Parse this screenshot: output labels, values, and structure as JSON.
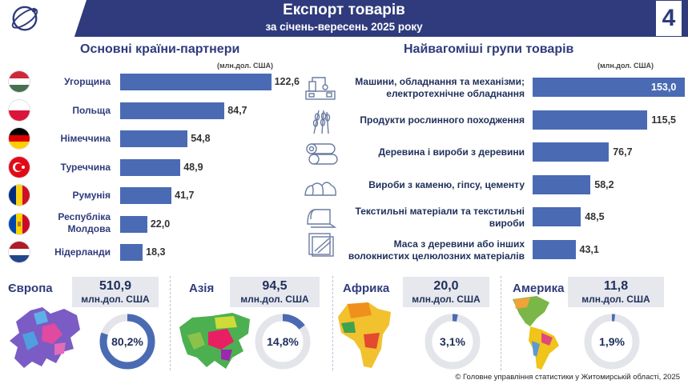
{
  "header": {
    "title": "Експорт товарів",
    "subtitle": "за січень-вересень 2025 року",
    "page_number": "4"
  },
  "partners": {
    "title": "Основні країни-партнери",
    "unit": "(млн.дол. США)"
  },
  "groups": {
    "title": "Найвагоміші групи товарів",
    "unit": "(млн.дол. США)"
  },
  "chart_data": [
    {
      "type": "bar",
      "orientation": "horizontal",
      "title": "Основні країни-партнери",
      "unit": "(млн.дол. США)",
      "categories": [
        "Угорщина",
        "Польща",
        "Німеччина",
        "Туреччина",
        "Румунія",
        "Республіка Молдова",
        "Нідерланди"
      ],
      "values": [
        122.6,
        84.7,
        54.8,
        48.9,
        41.7,
        22.0,
        18.3
      ],
      "labels": [
        "122,6",
        "84,7",
        "54,8",
        "48,9",
        "41,7",
        "22,0",
        "18,3"
      ],
      "bar_color": "#4a6bb4"
    },
    {
      "type": "bar",
      "orientation": "horizontal",
      "title": "Найвагоміші групи товарів",
      "unit": "(млн.дол. США)",
      "categories": [
        "Машини, обладнання та механізми; електротехнічне обладнання",
        "Продукти рослинного походження",
        "Деревина і вироби з деревини",
        "Вироби з каменю, гіпсу, цементу",
        "Текстильні матеріали та текстильні вироби",
        "Маса з деревини або інших волокнистих целюлозних матеріалів"
      ],
      "values": [
        153.0,
        115.5,
        76.7,
        58.2,
        48.5,
        43.1
      ],
      "labels": [
        "153,0",
        "115,5",
        "76,7",
        "58,2",
        "48,5",
        "43,1"
      ],
      "bar_color": "#4a6bb4"
    },
    {
      "type": "pie",
      "variant": "donut",
      "categories": [
        "Європа",
        "Азія",
        "Африка",
        "Америка"
      ],
      "values": [
        80.2,
        14.8,
        3.1,
        1.9
      ],
      "labels": [
        "80,2%",
        "14,8%",
        "3,1%",
        "1,9%"
      ],
      "amounts": [
        "510,9",
        "94,5",
        "20,0",
        "11,8"
      ],
      "amount_unit": "млн.дол. США",
      "ring_color": "#4a6bb4",
      "track_color": "#e3e5ea"
    }
  ],
  "partner_labels": [
    {
      "line1": "Угорщина",
      "line2": ""
    },
    {
      "line1": "Польща",
      "line2": ""
    },
    {
      "line1": "Німеччина",
      "line2": ""
    },
    {
      "line1": "Туреччина",
      "line2": ""
    },
    {
      "line1": "Румунія",
      "line2": ""
    },
    {
      "line1": "Республіка",
      "line2": "Молдова"
    },
    {
      "line1": "Нідерланди",
      "line2": ""
    }
  ],
  "group_labels": [
    {
      "line1": "Машини, обладнання та механізми;",
      "line2": "електротехнічне обладнання"
    },
    {
      "line1": "Продукти рослинного походження",
      "line2": ""
    },
    {
      "line1": "Деревина і вироби з деревини",
      "line2": ""
    },
    {
      "line1": "Вироби з каменю, гіпсу, цементу",
      "line2": ""
    },
    {
      "line1": "Текстильні матеріали та текстильні",
      "line2": "вироби"
    },
    {
      "line1": "Маса з деревини або інших",
      "line2": "волокнистих целюлозних матеріалів"
    }
  ],
  "regions": [
    {
      "name": "Європа",
      "amount": "510,9",
      "unit": "млн.дол. США",
      "share": "80,2%"
    },
    {
      "name": "Азія",
      "amount": "94,5",
      "unit": "млн.дол. США",
      "share": "14,8%"
    },
    {
      "name": "Африка",
      "amount": "20,0",
      "unit": "млн.дол. США",
      "share": "3,1%"
    },
    {
      "name": "Америка",
      "amount": "11,8",
      "unit": "млн.дол. США",
      "share": "1,9%"
    }
  ],
  "footer": "© Головне управління статистики у Житомирській області, 2025"
}
